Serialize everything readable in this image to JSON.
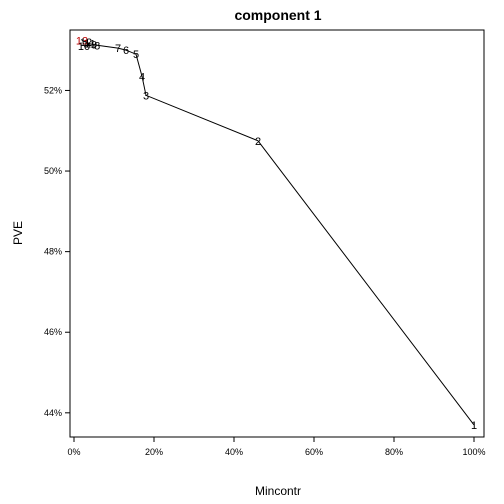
{
  "chart_data": {
    "type": "line",
    "title": "component 1",
    "xlabel": "Mincontr",
    "ylabel": "PVE",
    "xlim": [
      -0.01,
      1.025
    ],
    "ylim": [
      43.4,
      53.5
    ],
    "x_ticks": [
      0,
      0.2,
      0.4,
      0.6,
      0.8,
      1.0
    ],
    "x_tick_labels": [
      "0%",
      "20%",
      "40%",
      "60%",
      "80%",
      "100%"
    ],
    "y_ticks": [
      44,
      46,
      48,
      50,
      52
    ],
    "y_tick_labels": [
      "44%",
      "46%",
      "48%",
      "50%",
      "52%"
    ],
    "grid": false,
    "legend": "none",
    "line_color": "#000000",
    "label_color": "#000000",
    "highlight_label_color": "#c00000",
    "points": [
      {
        "label": "1",
        "x": 1.0,
        "y": 43.7
      },
      {
        "label": "2",
        "x": 0.46,
        "y": 50.75
      },
      {
        "label": "3",
        "x": 0.18,
        "y": 51.88
      },
      {
        "label": "4",
        "x": 0.17,
        "y": 52.35
      },
      {
        "label": "5",
        "x": 0.155,
        "y": 52.9
      },
      {
        "label": "6",
        "x": 0.13,
        "y": 53.0
      },
      {
        "label": "7",
        "x": 0.11,
        "y": 53.05
      },
      {
        "label": "8",
        "x": 0.058,
        "y": 53.12
      },
      {
        "label": "9",
        "x": 0.05,
        "y": 53.14
      },
      {
        "label": "10",
        "x": 0.025,
        "y": 53.1
      },
      {
        "label": "11",
        "x": 0.04,
        "y": 53.16
      },
      {
        "label": "12",
        "x": 0.03,
        "y": 53.2
      },
      {
        "label": "13",
        "x": 0.02,
        "y": 53.24
      }
    ]
  }
}
